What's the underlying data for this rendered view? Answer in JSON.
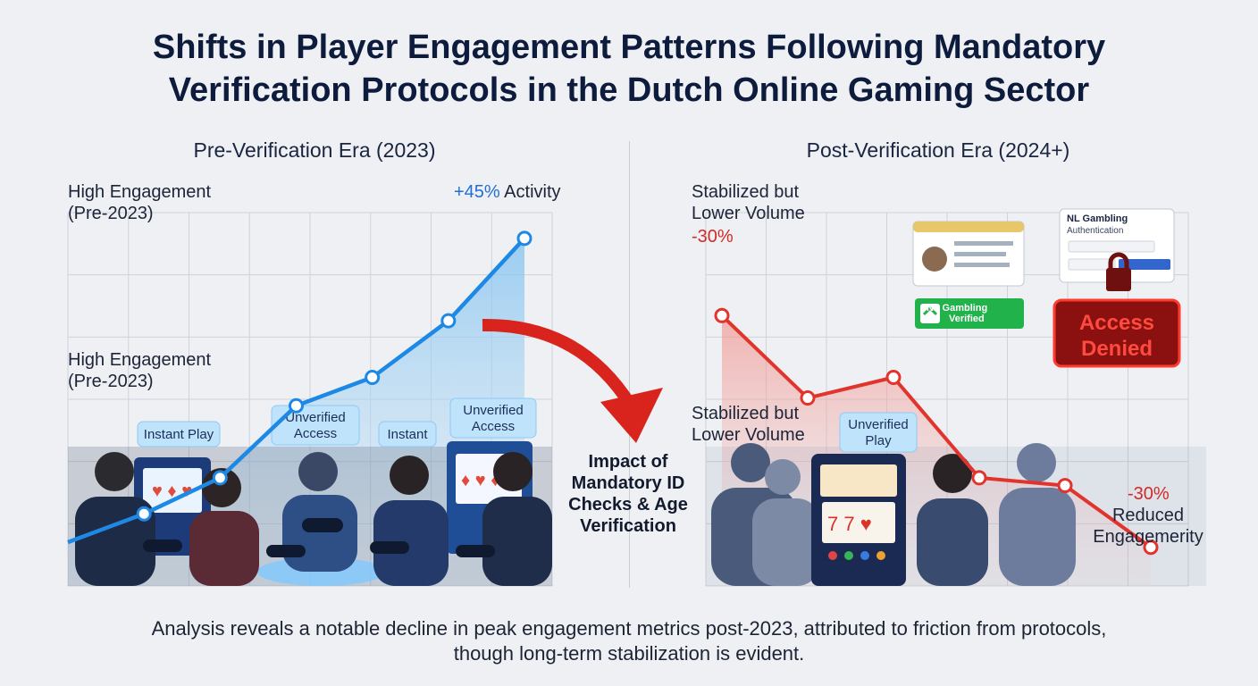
{
  "title": {
    "line1": "Shifts in Player Engagement Patterns Following Mandatory",
    "line2": "Verification Protocols in the Dutch Online Gaming Sector"
  },
  "colors": {
    "pre_line": "#1e88e5",
    "post_line": "#e0342c",
    "title": "#0d1b3d",
    "badge_green": "#22b24c",
    "denied_red": "#8b1010"
  },
  "chart_data": [
    {
      "type": "line",
      "title": "Pre-Verification Era (2023)",
      "x": [
        0,
        1,
        2,
        3,
        4,
        5,
        6
      ],
      "values": [
        0.2,
        1.3,
        2.7,
        5.5,
        6.6,
        8.8,
        12.0
      ],
      "ylim": [
        -1.5,
        13.0
      ],
      "grid": true,
      "annotations": {
        "top_left": "High Engagement (Pre-2023)",
        "mid_left": "High Engagement (Pre-2023)",
        "peak_value": "+45%",
        "peak_text": "Activity"
      },
      "tags": [
        "Instant Play",
        "Unverified Access",
        "Instant",
        "Unverified Access"
      ]
    },
    {
      "type": "line",
      "title": "Post-Verification Era (2024+)",
      "x": [
        0,
        1,
        2,
        3,
        4,
        5
      ],
      "values": [
        9.0,
        5.8,
        6.6,
        2.7,
        2.4,
        0.0
      ],
      "ylim": [
        -1.5,
        13.0
      ],
      "grid": true,
      "annotations": {
        "top_left": "Stabilized but Lower Volume",
        "start_value": "-30%",
        "mid_left": "Stabilized but Lower Volume",
        "end_value": "-30%",
        "end_text": "Reduced Engagemerity"
      },
      "tags": [
        "Unverified Play"
      ],
      "badges": {
        "verified": "NL Gambling Verified",
        "auth_title": "NL Gambling",
        "auth_sub": "Authentication",
        "denied": "Access Denied"
      }
    }
  ],
  "center": {
    "text_lines": [
      "Impact of",
      "Mandatory ID",
      "Checks & Age",
      "Verification"
    ]
  },
  "footer": {
    "line1": "Analysis reveals a notable decline in peak engagement metrics post-2023, attributed to friction from protocols,",
    "line2": "though long-term stabilization is evident."
  }
}
